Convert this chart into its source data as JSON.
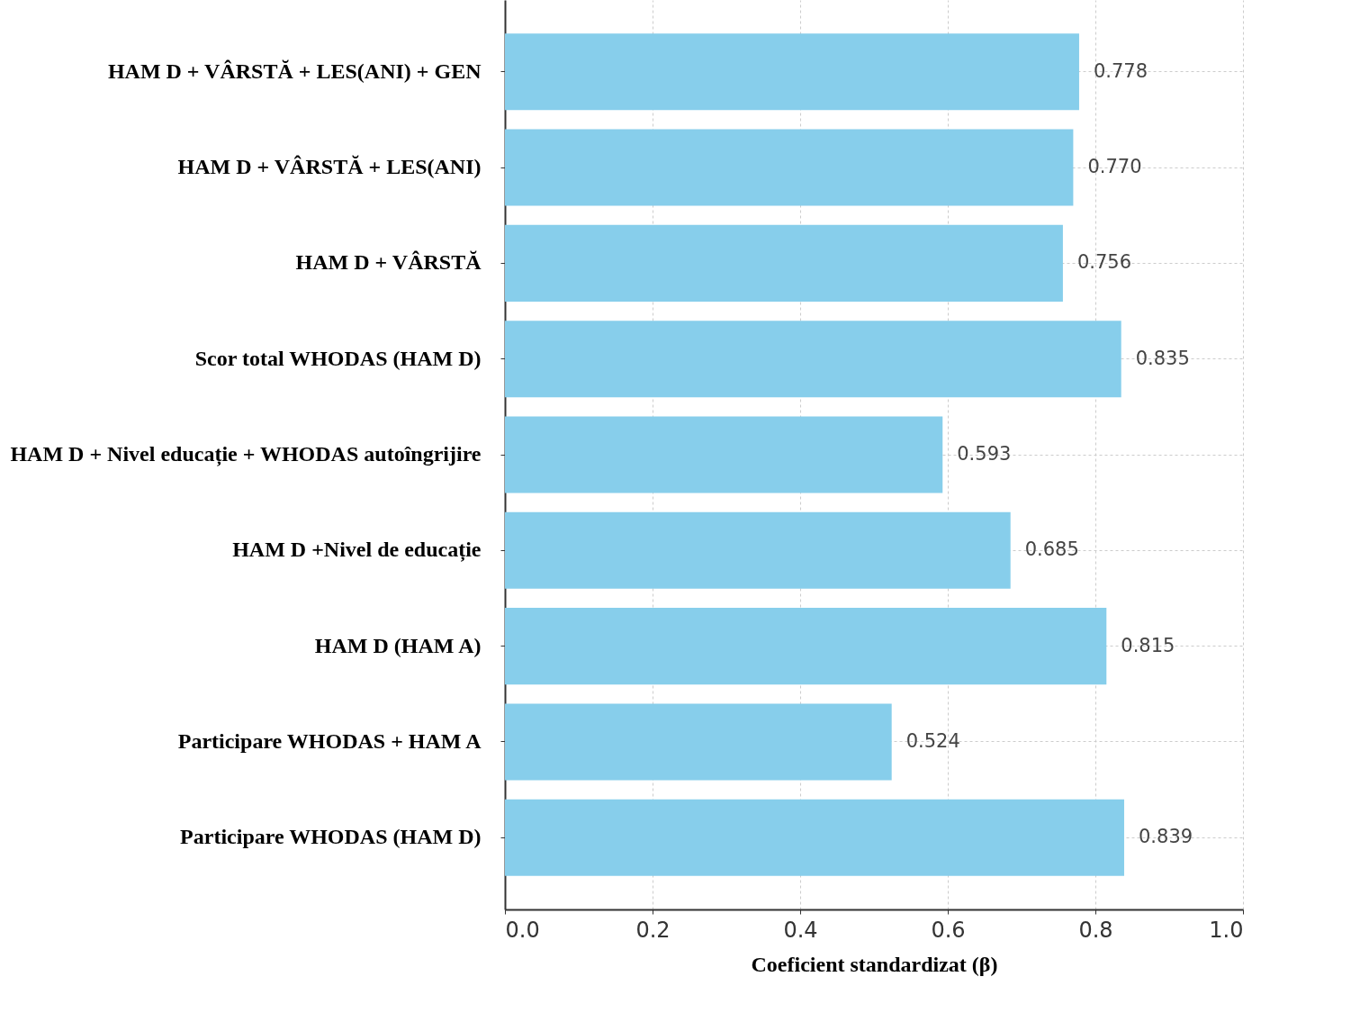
{
  "chart_data": {
    "type": "bar",
    "orientation": "horizontal",
    "xlabel": "Coeficient standardizat (β)",
    "categories": [
      "HAM D + VÂRSTĂ + LES(ANI) + GEN",
      "HAM D + VÂRSTĂ + LES(ANI)",
      "HAM D + VÂRSTĂ",
      "Scor total WHODAS (HAM D)",
      "HAM D + Nivel educație + WHODAS autoîngrijire",
      "HAM D +Nivel de educație",
      "HAM D (HAM A)",
      "Participare WHODAS + HAM A",
      "Participare WHODAS (HAM D)"
    ],
    "values": [
      0.778,
      0.77,
      0.756,
      0.835,
      0.593,
      0.685,
      0.815,
      0.524,
      0.839
    ],
    "value_labels": [
      "0.778",
      "0.770",
      "0.756",
      "0.835",
      "0.593",
      "0.685",
      "0.815",
      "0.524",
      "0.839"
    ],
    "color": "#87ceeb",
    "xlim": [
      0,
      1
    ],
    "xticks": [
      {
        "value": 0,
        "label": "0.0"
      },
      {
        "value": 0.2,
        "label": "0.2"
      },
      {
        "value": 0.4,
        "label": "0.4"
      },
      {
        "value": 0.6,
        "label": "0.6"
      },
      {
        "value": 0.8,
        "label": "0.8"
      },
      {
        "value": 1,
        "label": "1.0"
      }
    ],
    "grid": true
  }
}
